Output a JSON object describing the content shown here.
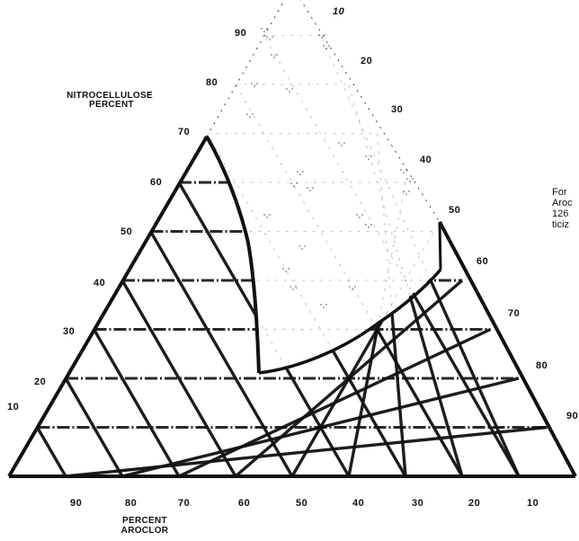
{
  "chart_data": {
    "type": "ternary-diagram",
    "axes": {
      "nitrocellulose": {
        "title_line1": "NITROCELLULOSE",
        "title_line2": "PERCENT",
        "ticks_left_edge": [
          "10",
          "20",
          "30",
          "40",
          "50",
          "60",
          "70"
        ],
        "ticks_upper": [
          "80",
          "90"
        ]
      },
      "aroclor": {
        "title_line1": "PERCENT",
        "title_line2": "AROCLOR",
        "ticks": [
          "90",
          "80",
          "70",
          "60",
          "50",
          "40",
          "30",
          "20",
          "10"
        ]
      },
      "third_axis": {
        "ticks_upper": [
          "10",
          "20",
          "30",
          "40"
        ],
        "ticks_right_edge": [
          "50",
          "60",
          "70",
          "80",
          "90"
        ]
      }
    },
    "region": {
      "description_lines": [
        "For",
        "Aroc",
        "126",
        "ticiz"
      ]
    },
    "colors": {
      "ink": "#111111",
      "paper": "#ffffff"
    }
  }
}
